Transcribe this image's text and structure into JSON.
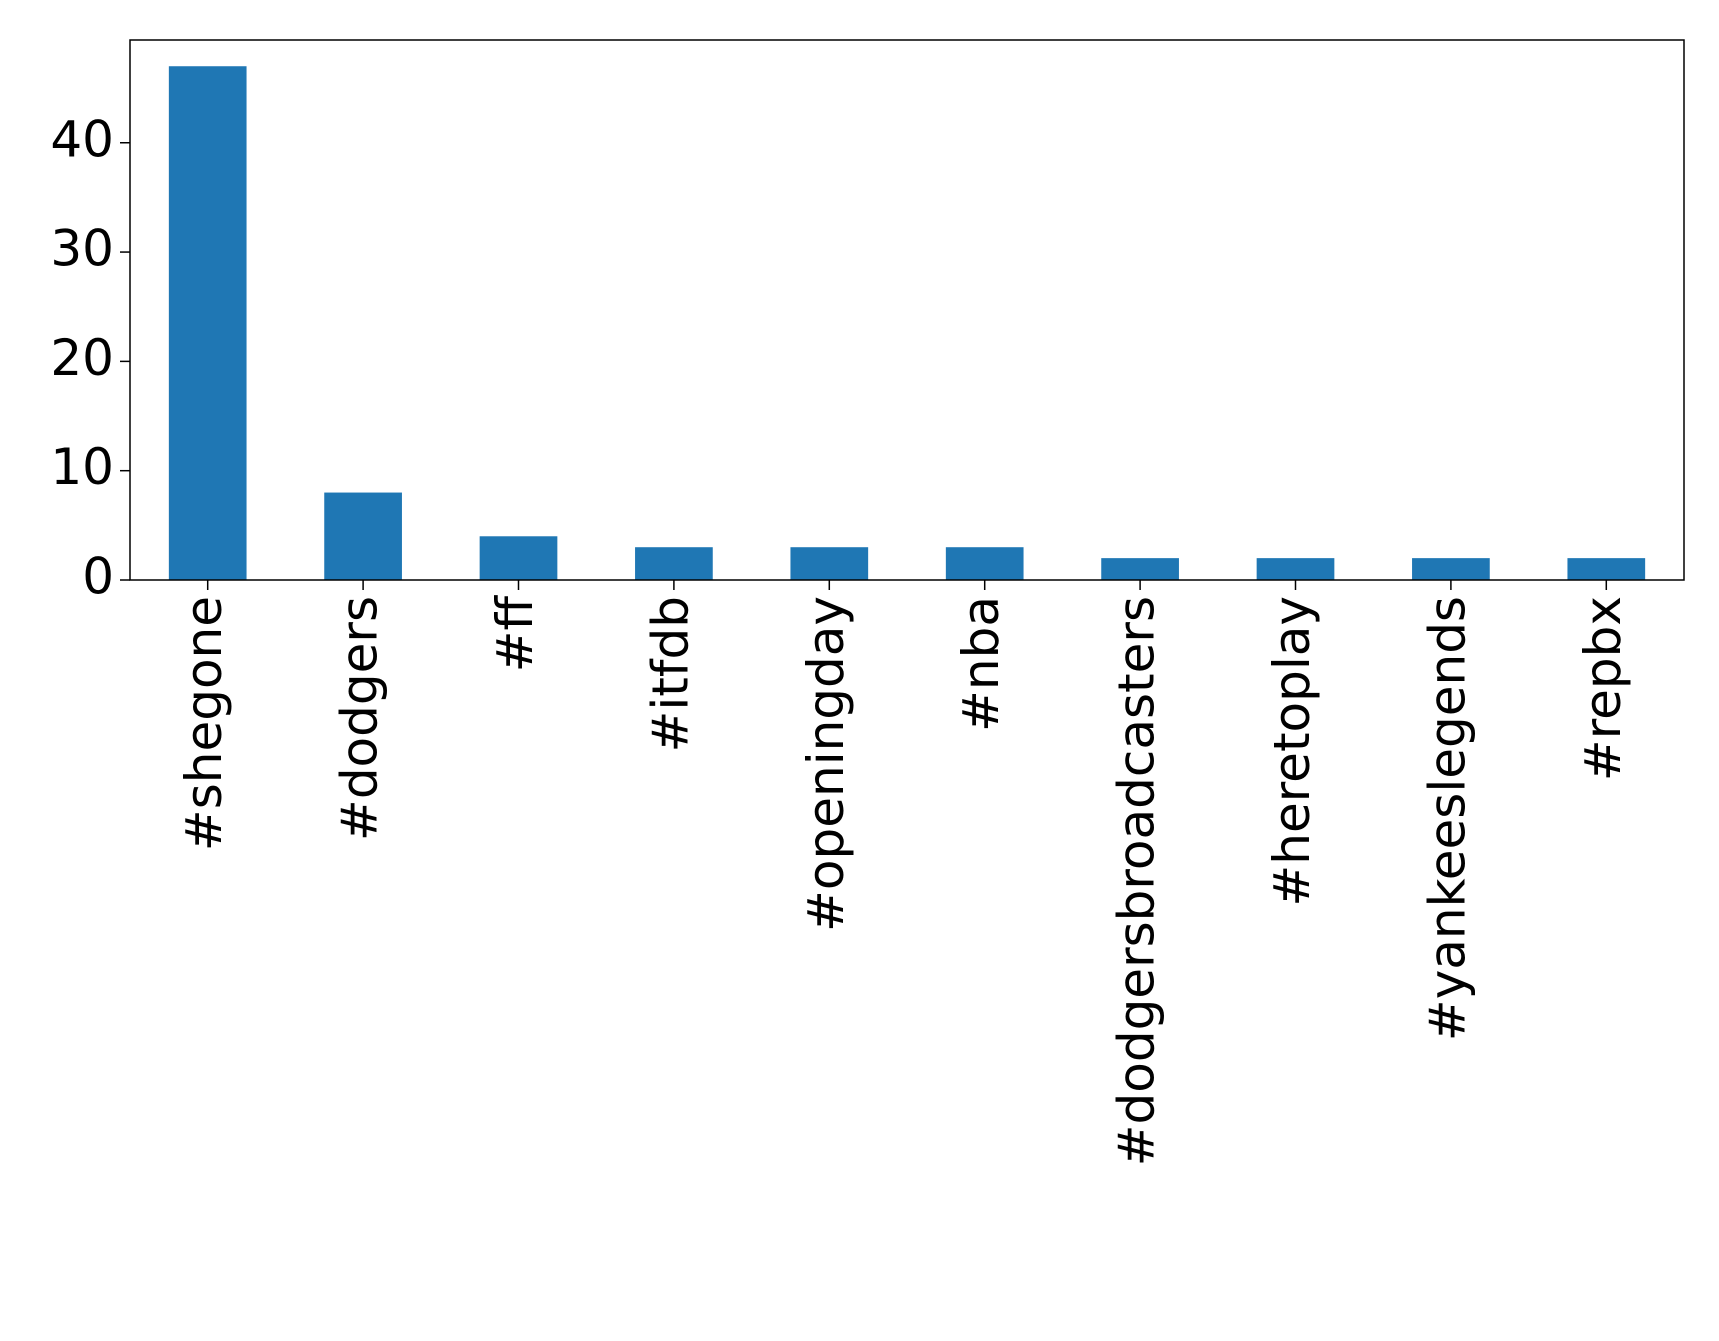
{
  "chart_data": {
    "type": "bar",
    "categories": [
      "#shegone",
      "#dodgers",
      "#ff",
      "#itfdb",
      "#openingday",
      "#nba",
      "#dodgersbroadcasters",
      "#heretoplay",
      "#yankeeslegends",
      "#repbx"
    ],
    "values": [
      47,
      8,
      4,
      3,
      3,
      3,
      2,
      2,
      2,
      2
    ],
    "color": "#1f77b4",
    "ylim": [
      0,
      49.4
    ],
    "yticks": [
      0,
      10,
      20,
      30,
      40
    ],
    "grid": false
  }
}
